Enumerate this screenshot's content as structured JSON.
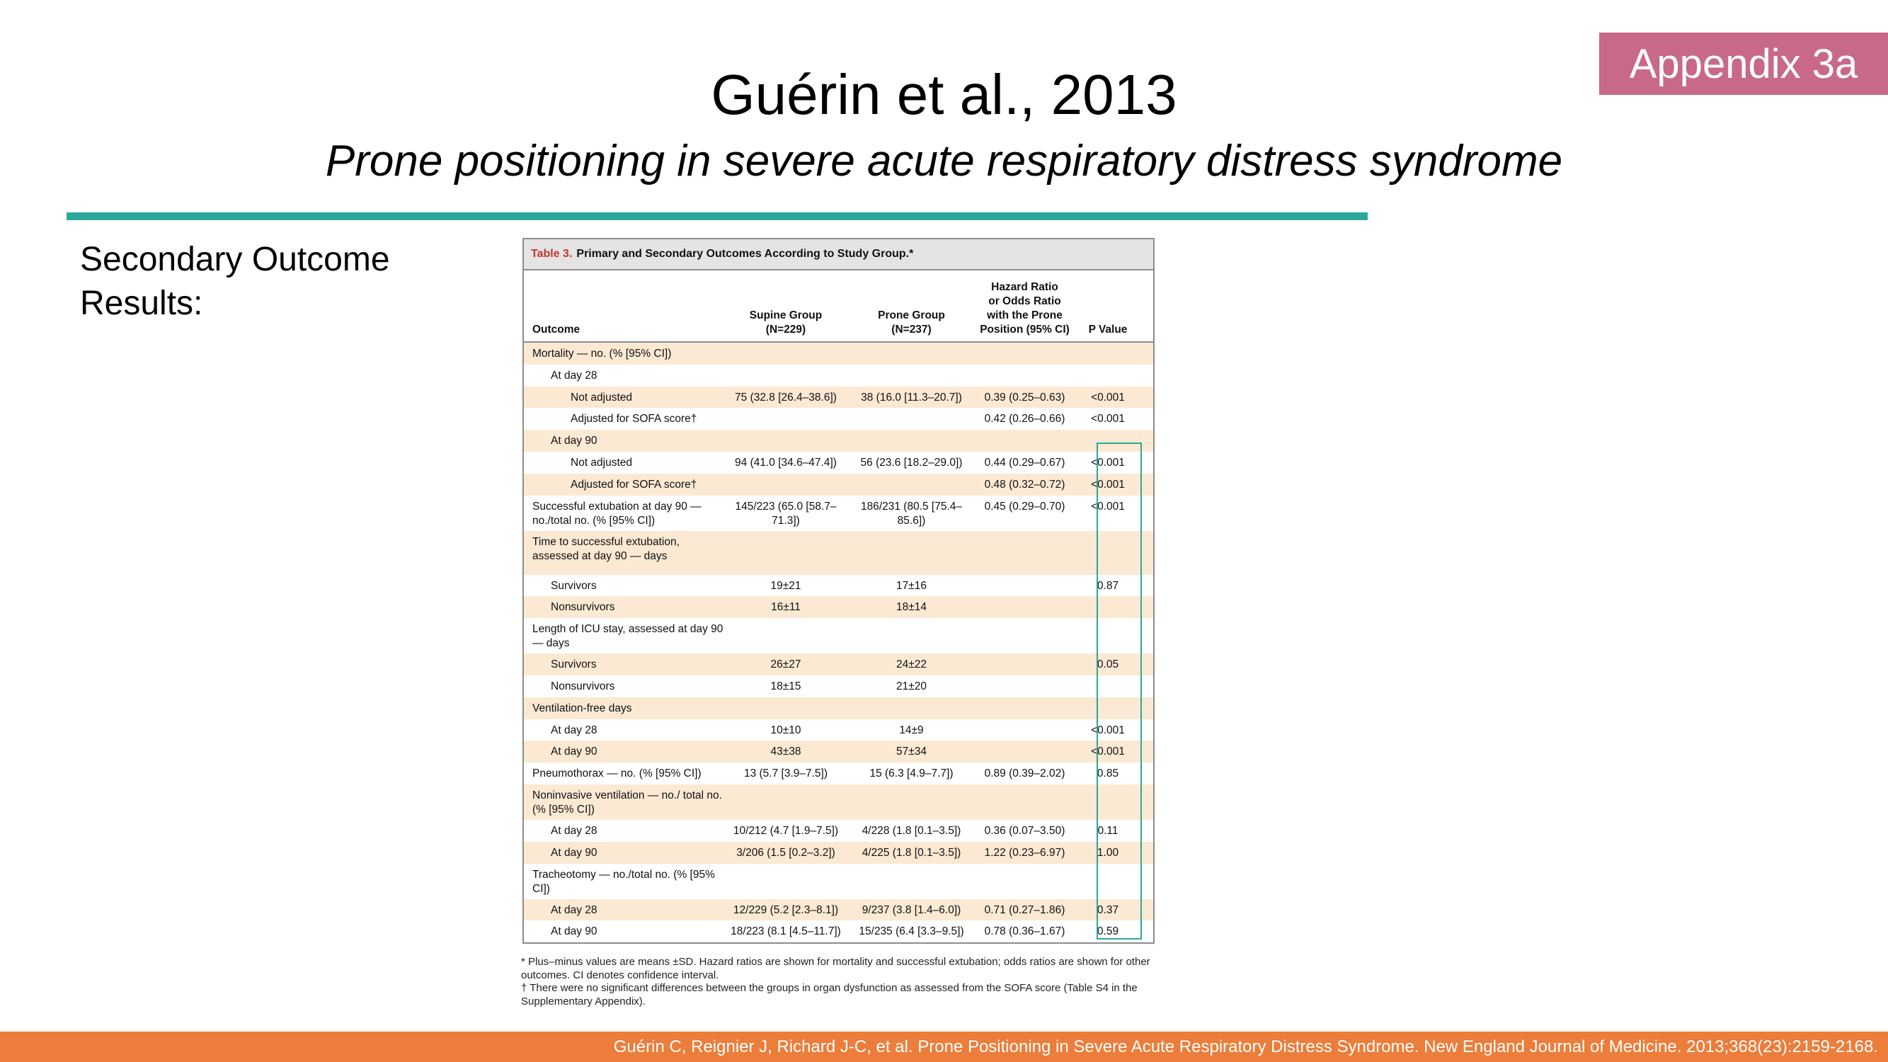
{
  "badge": "Appendix 3a",
  "title": "Guérin et al., 2013",
  "subtitle": "Prone positioning in severe acute respiratory distress syndrome",
  "side_label": [
    "Secondary Outcome",
    "Results:"
  ],
  "table": {
    "number": "Table 3.",
    "caption": "Primary and Secondary Outcomes According to Study Group.*",
    "headers": [
      "Outcome",
      "Supine Group\n(N=229)",
      "Prone Group\n(N=237)",
      "Hazard Ratio\nor Odds Ratio\nwith the Prone\nPosition (95% CI)",
      "P Value"
    ],
    "rows": [
      {
        "label": "Mortality — no. (% [95% CI])",
        "indent": 0,
        "supine": "",
        "prone": "",
        "ratio": "",
        "p": ""
      },
      {
        "label": "At day 28",
        "indent": 1,
        "supine": "",
        "prone": "",
        "ratio": "",
        "p": ""
      },
      {
        "label": "Not adjusted",
        "indent": 2,
        "supine": "75 (32.8 [26.4–38.6])",
        "prone": "38 (16.0 [11.3–20.7])",
        "ratio": "0.39 (0.25–0.63)",
        "p": "<0.001"
      },
      {
        "label": "Adjusted for SOFA score†",
        "indent": 2,
        "supine": "",
        "prone": "",
        "ratio": "0.42 (0.26–0.66)",
        "p": "<0.001"
      },
      {
        "label": "At day 90",
        "indent": 1,
        "supine": "",
        "prone": "",
        "ratio": "",
        "p": ""
      },
      {
        "label": "Not adjusted",
        "indent": 2,
        "supine": "94 (41.0 [34.6–47.4])",
        "prone": "56 (23.6 [18.2–29.0])",
        "ratio": "0.44 (0.29–0.67)",
        "p": "<0.001"
      },
      {
        "label": "Adjusted for SOFA score†",
        "indent": 2,
        "supine": "",
        "prone": "",
        "ratio": "0.48 (0.32–0.72)",
        "p": "<0.001"
      },
      {
        "label": "Successful extubation at day 90 — no./total no. (% [95% CI])",
        "indent": 0,
        "supine": "145/223 (65.0 [58.7–71.3])",
        "prone": "186/231 (80.5 [75.4–85.6])",
        "ratio": "0.45 (0.29–0.70)",
        "p": "<0.001",
        "tall": 1
      },
      {
        "label": "Time to successful extubation, assessed at day 90 — days",
        "indent": 0,
        "supine": "",
        "prone": "",
        "ratio": "",
        "p": "",
        "tall": 2
      },
      {
        "label": "Survivors",
        "indent": 1,
        "supine": "19±21",
        "prone": "17±16",
        "ratio": "",
        "p": "0.87"
      },
      {
        "label": "Nonsurvivors",
        "indent": 1,
        "supine": "16±11",
        "prone": "18±14",
        "ratio": "",
        "p": ""
      },
      {
        "label": "Length of ICU stay, assessed at day 90 — days",
        "indent": 0,
        "supine": "",
        "prone": "",
        "ratio": "",
        "p": "",
        "tall": 1
      },
      {
        "label": "Survivors",
        "indent": 1,
        "supine": "26±27",
        "prone": "24±22",
        "ratio": "",
        "p": "0.05"
      },
      {
        "label": "Nonsurvivors",
        "indent": 1,
        "supine": "18±15",
        "prone": "21±20",
        "ratio": "",
        "p": ""
      },
      {
        "label": "Ventilation-free days",
        "indent": 0,
        "supine": "",
        "prone": "",
        "ratio": "",
        "p": ""
      },
      {
        "label": "At day 28",
        "indent": 1,
        "supine": "10±10",
        "prone": "14±9",
        "ratio": "",
        "p": "<0.001"
      },
      {
        "label": "At day 90",
        "indent": 1,
        "supine": "43±38",
        "prone": "57±34",
        "ratio": "",
        "p": "<0.001"
      },
      {
        "label": "Pneumothorax — no. (% [95% CI])",
        "indent": 0,
        "supine": "13 (5.7 [3.9–7.5])",
        "prone": "15 (6.3 [4.9–7.7])",
        "ratio": "0.89 (0.39–2.02)",
        "p": "0.85"
      },
      {
        "label": "Noninvasive ventilation — no./ total no. (% [95% CI])",
        "indent": 0,
        "supine": "",
        "prone": "",
        "ratio": "",
        "p": "",
        "tall": 1
      },
      {
        "label": "At day 28",
        "indent": 1,
        "supine": "10/212 (4.7 [1.9–7.5])",
        "prone": "4/228 (1.8 [0.1–3.5])",
        "ratio": "0.36 (0.07–3.50)",
        "p": "0.11"
      },
      {
        "label": "At day 90",
        "indent": 1,
        "supine": "3/206 (1.5 [0.2–3.2])",
        "prone": "4/225 (1.8 [0.1–3.5])",
        "ratio": "1.22 (0.23–6.97)",
        "p": "1.00"
      },
      {
        "label": "Tracheotomy — no./total no. (% [95% CI])",
        "indent": 0,
        "supine": "",
        "prone": "",
        "ratio": "",
        "p": "",
        "tall": 1
      },
      {
        "label": "At day 28",
        "indent": 1,
        "supine": "12/229 (5.2 [2.3–8.1])",
        "prone": "9/237 (3.8 [1.4–6.0])",
        "ratio": "0.71 (0.27–1.86)",
        "p": "0.37"
      },
      {
        "label": "At day 90",
        "indent": 1,
        "supine": "18/223 (8.1 [4.5–11.7])",
        "prone": "15/235 (6.4 [3.3–9.5])",
        "ratio": "0.78 (0.36–1.67)",
        "p": "0.59"
      }
    ],
    "footnotes": [
      "* Plus–minus values are means ±SD. Hazard ratios are shown for mortality and successful extubation; odds ratios are shown for other outcomes. CI denotes confidence interval.",
      "† There were no significant differences between the groups in organ dysfunction as assessed from the SOFA score (Table S4 in the Supplementary Appendix)."
    ]
  },
  "citation": "Guérin C, Reignier J, Richard J-C, et al. Prone Positioning in Severe Acute Respiratory Distress Syndrome. New England Journal of Medicine. 2013;368(23):2159-2168.",
  "colors": {
    "badge": "#c8698a",
    "rule": "#2aa89a",
    "bottom_bar": "#ec7d3a",
    "row_shade": "#fbe9d3",
    "highlight_box": "#2aa89a"
  }
}
